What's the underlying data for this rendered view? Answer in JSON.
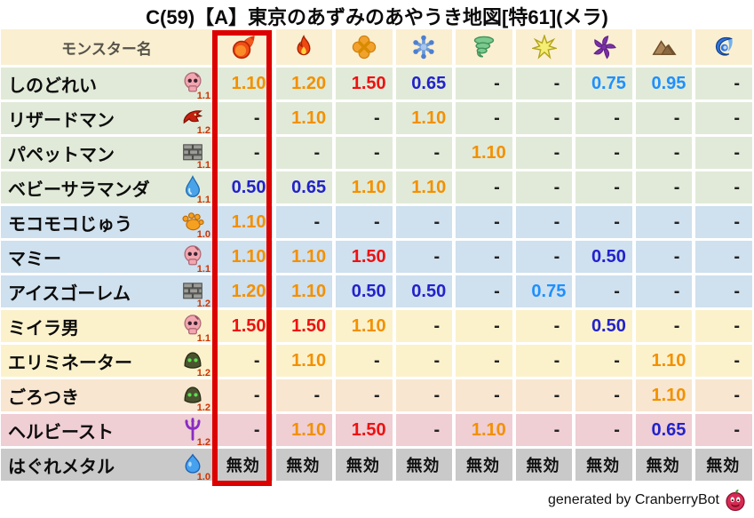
{
  "title": "C(59)【A】東京のあずみのあやうき地図[特61](メラ)",
  "footer_credit": "generated by CranberryBot",
  "chart_data": {
    "type": "table",
    "title": "C(59)【A】東京のあずみのあやうき地図[特61](メラ)",
    "name_column_header": "モンスター名",
    "element_columns": [
      "fireball-icon",
      "flame-icon",
      "explosion-icon",
      "ice-icon",
      "wind-icon",
      "light-icon",
      "dark-icon",
      "earth-icon",
      "water-icon"
    ],
    "highlighted_column_index": 0,
    "rows": [
      {
        "name": "しのどれい",
        "icon": "skull-icon",
        "rate": "1.1",
        "group": "green",
        "values": [
          "1.10",
          "1.20",
          "1.50",
          "0.65",
          "-",
          "-",
          "0.75",
          "0.95",
          "-"
        ]
      },
      {
        "name": "リザードマン",
        "icon": "dragon-icon",
        "rate": "1.2",
        "group": "green",
        "values": [
          "-",
          "1.10",
          "-",
          "1.10",
          "-",
          "-",
          "-",
          "-",
          "-"
        ]
      },
      {
        "name": "パペットマン",
        "icon": "brick-icon",
        "rate": "1.1",
        "group": "green",
        "values": [
          "-",
          "-",
          "-",
          "-",
          "1.10",
          "-",
          "-",
          "-",
          "-"
        ]
      },
      {
        "name": "ベビーサラマンダ",
        "icon": "drop-icon",
        "rate": "1.1",
        "group": "green",
        "values": [
          "0.50",
          "0.65",
          "1.10",
          "1.10",
          "-",
          "-",
          "-",
          "-",
          "-"
        ]
      },
      {
        "name": "モコモコじゅう",
        "icon": "paw-icon",
        "rate": "1.0",
        "group": "blue",
        "values": [
          "1.10",
          "-",
          "-",
          "-",
          "-",
          "-",
          "-",
          "-",
          "-"
        ]
      },
      {
        "name": "マミー",
        "icon": "skull-icon",
        "rate": "1.1",
        "group": "blue",
        "values": [
          "1.10",
          "1.10",
          "1.50",
          "-",
          "-",
          "-",
          "0.50",
          "-",
          "-"
        ]
      },
      {
        "name": "アイスゴーレム",
        "icon": "brick-icon",
        "rate": "1.2",
        "group": "blue",
        "values": [
          "1.20",
          "1.10",
          "0.50",
          "0.50",
          "-",
          "0.75",
          "-",
          "-",
          "-"
        ]
      },
      {
        "name": "ミイラ男",
        "icon": "skull-icon",
        "rate": "1.1",
        "group": "yellow",
        "values": [
          "1.50",
          "1.50",
          "1.10",
          "-",
          "-",
          "-",
          "0.50",
          "-",
          "-"
        ]
      },
      {
        "name": "エリミネーター",
        "icon": "helmet-icon",
        "rate": "1.2",
        "group": "yellow",
        "values": [
          "-",
          "1.10",
          "-",
          "-",
          "-",
          "-",
          "-",
          "1.10",
          "-"
        ]
      },
      {
        "name": "ごろつき",
        "icon": "helmet-icon",
        "rate": "1.2",
        "group": "peach",
        "values": [
          "-",
          "-",
          "-",
          "-",
          "-",
          "-",
          "-",
          "1.10",
          "-"
        ]
      },
      {
        "name": "ヘルビースト",
        "icon": "trident-icon",
        "rate": "1.2",
        "group": "pink",
        "values": [
          "-",
          "1.10",
          "1.50",
          "-",
          "1.10",
          "-",
          "-",
          "0.65",
          "-"
        ]
      },
      {
        "name": "はぐれメタル",
        "icon": "slime-icon",
        "rate": "1.0",
        "group": "gray",
        "values": [
          "無効",
          "無効",
          "無効",
          "無効",
          "無効",
          "無効",
          "無効",
          "無効",
          "無効"
        ]
      }
    ],
    "value_styles": {
      "1.50": "strong-weak",
      "1.20": "weak",
      "1.10": "weak",
      "0.95": "slight-resist",
      "0.75": "slight-resist",
      "0.65": "resist",
      "0.50": "resist",
      "-": "neutral",
      "無効": "immune"
    }
  },
  "palette": {
    "header_bg": "#faefd1",
    "row_groups": {
      "green": "#e1ead8",
      "blue": "#cfe0ee",
      "yellow": "#fbf2cc",
      "peach": "#f8e6d0",
      "pink": "#efced4",
      "gray": "#c9c9c9"
    },
    "value_colors": {
      "strong-weak": "#ee1111",
      "weak": "#f39000",
      "slight-resist": "#1e90ff",
      "resist": "#2222cc",
      "neutral": "#222222",
      "immune": "#111111"
    },
    "highlight_border": "#dd0000",
    "rate_color": "#cc3300"
  }
}
